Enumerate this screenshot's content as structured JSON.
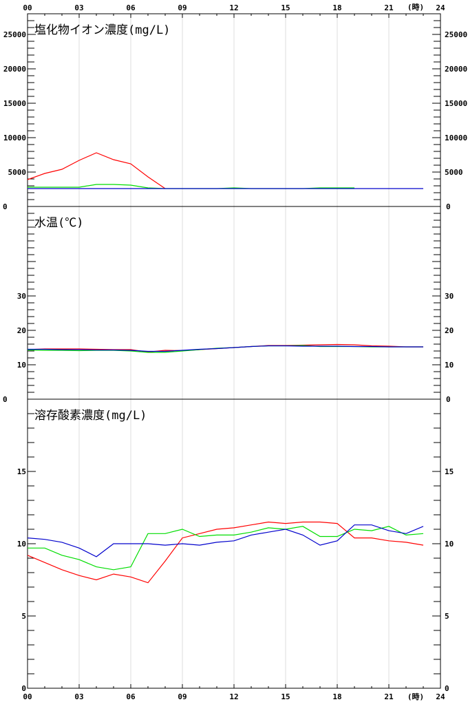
{
  "x_axis": {
    "tick_labels": [
      "00",
      "03",
      "06",
      "09",
      "12",
      "15",
      "18",
      "21",
      "24"
    ],
    "unit_label": "(時)"
  },
  "series_colors": [
    "#ff0000",
    "#00dd00",
    "#0000cc"
  ],
  "chart_data": [
    {
      "type": "line",
      "title": "塩化物イオン濃度(mg/L)",
      "xlabel": "",
      "ylabel": "",
      "xlim": [
        0,
        24
      ],
      "ylim": [
        0,
        28000
      ],
      "y_ticks": [
        0,
        5000,
        10000,
        15000,
        20000,
        25000
      ],
      "y_tick_labels": [
        "0",
        "5000",
        "10000",
        "15000",
        "20000",
        "25000"
      ],
      "x": [
        0,
        1,
        2,
        3,
        4,
        5,
        6,
        7,
        8,
        9,
        10,
        11,
        12,
        13,
        14,
        15,
        16,
        17,
        18,
        19,
        20,
        21,
        22,
        23
      ],
      "series": [
        {
          "color": "#ff0000",
          "values": [
            3900,
            4800,
            5400,
            6700,
            7800,
            6800,
            6200,
            4300,
            2600,
            null,
            null,
            null,
            null,
            null,
            null,
            null,
            null,
            null,
            null,
            null,
            null,
            null,
            null,
            null
          ]
        },
        {
          "color": "#00dd00",
          "values": [
            2800,
            2800,
            2800,
            2800,
            3200,
            3200,
            3100,
            2700,
            2600,
            2600,
            2600,
            2600,
            2700,
            2600,
            2600,
            2600,
            2600,
            2700,
            2700,
            2700,
            null,
            null,
            null,
            null
          ]
        },
        {
          "color": "#0000cc",
          "values": [
            2600,
            2600,
            2600,
            2600,
            2600,
            2600,
            2600,
            2600,
            2600,
            2600,
            2600,
            2600,
            2600,
            2600,
            2600,
            2600,
            2600,
            2600,
            2600,
            2600,
            2600,
            2600,
            2600,
            2600
          ]
        }
      ]
    },
    {
      "type": "line",
      "title": "水温(℃)",
      "xlabel": "",
      "ylabel": "",
      "xlim": [
        0,
        24
      ],
      "ylim": [
        0,
        56
      ],
      "y_ticks": [
        0,
        10,
        20,
        30
      ],
      "y_tick_labels": [
        "0",
        "10",
        "20",
        "30"
      ],
      "x": [
        0,
        1,
        2,
        3,
        4,
        5,
        6,
        7,
        8,
        9,
        10,
        11,
        12,
        13,
        14,
        15,
        16,
        17,
        18,
        19,
        20,
        21,
        22,
        23
      ],
      "series": [
        {
          "color": "#ff0000",
          "values": [
            14.4,
            14.6,
            14.6,
            14.6,
            14.5,
            14.4,
            14.4,
            13.7,
            14.2,
            14.1,
            14.4,
            14.7,
            15.0,
            15.3,
            15.6,
            15.6,
            15.7,
            15.8,
            15.9,
            15.8,
            15.5,
            15.4,
            15.2,
            15.2
          ]
        },
        {
          "color": "#00dd00",
          "values": [
            14.3,
            14.2,
            14.2,
            14.1,
            14.2,
            14.2,
            14.0,
            13.6,
            13.6,
            14.0,
            14.4,
            14.8,
            15.0,
            15.3,
            15.5,
            15.5,
            15.6,
            15.3,
            15.3,
            15.3,
            15.2,
            15.2,
            15.2,
            15.2
          ]
        },
        {
          "color": "#0000cc",
          "values": [
            14.5,
            14.5,
            14.4,
            14.4,
            14.3,
            14.3,
            14.2,
            13.9,
            13.9,
            14.2,
            14.5,
            14.7,
            15.0,
            15.3,
            15.5,
            15.5,
            15.4,
            15.4,
            15.4,
            15.3,
            15.3,
            15.2,
            15.2,
            15.2
          ]
        }
      ]
    },
    {
      "type": "line",
      "title": "溶存酸素濃度(mg/L)",
      "xlabel": "",
      "ylabel": "",
      "xlim": [
        0,
        24
      ],
      "ylim": [
        0,
        20
      ],
      "y_ticks": [
        0,
        5,
        10,
        15
      ],
      "y_tick_labels": [
        "0",
        "5",
        "10",
        "15"
      ],
      "x": [
        0,
        1,
        2,
        3,
        4,
        5,
        6,
        7,
        8,
        9,
        10,
        11,
        12,
        13,
        14,
        15,
        16,
        17,
        18,
        19,
        20,
        21,
        22,
        23
      ],
      "series": [
        {
          "color": "#ff0000",
          "values": [
            9.2,
            8.7,
            8.2,
            7.8,
            7.5,
            7.9,
            7.7,
            7.3,
            8.8,
            10.4,
            10.7,
            11.0,
            11.1,
            11.3,
            11.5,
            11.4,
            11.5,
            11.5,
            11.4,
            10.4,
            10.4,
            10.2,
            10.1,
            9.9
          ]
        },
        {
          "color": "#00dd00",
          "values": [
            9.7,
            9.7,
            9.2,
            8.9,
            8.4,
            8.2,
            8.4,
            10.7,
            10.7,
            11.0,
            10.5,
            10.6,
            10.6,
            10.8,
            11.1,
            11.0,
            11.2,
            10.5,
            10.5,
            11.0,
            10.9,
            11.2,
            10.6,
            10.7
          ]
        },
        {
          "color": "#0000cc",
          "values": [
            10.4,
            10.3,
            10.1,
            9.7,
            9.1,
            10.0,
            10.0,
            10.0,
            9.9,
            10.0,
            9.9,
            10.1,
            10.2,
            10.6,
            10.8,
            11.0,
            10.6,
            9.9,
            10.2,
            11.3,
            11.3,
            10.9,
            10.7,
            11.2
          ]
        }
      ]
    }
  ]
}
